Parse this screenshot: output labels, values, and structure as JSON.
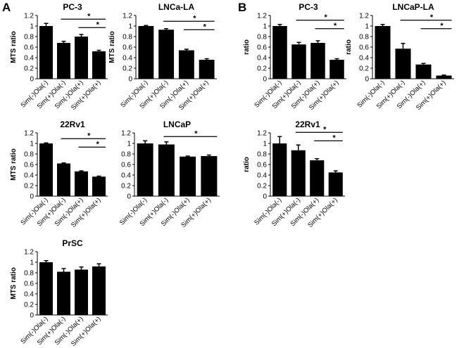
{
  "figure": {
    "panels": [
      {
        "label": "A"
      },
      {
        "label": "B"
      }
    ]
  },
  "chart_data": [
    {
      "type": "bar",
      "panel": "A",
      "title": "PC-3",
      "ylabel": "MTS ratio",
      "categories": [
        "Sim(-)Ola(-)",
        "Sim(+)Ola(-)",
        "Sim(-)Ola(+)",
        "Sim(+)Ola(+)"
      ],
      "values": [
        1.0,
        0.68,
        0.8,
        0.52
      ],
      "errors": [
        0.05,
        0.03,
        0.04,
        0.02
      ],
      "ylim": [
        0,
        1.2
      ],
      "yticks": [
        "0",
        "0.2",
        "0.4",
        "0.6",
        "0.8",
        "1",
        "1.2"
      ],
      "significance": [
        {
          "from": 1,
          "to": 3,
          "label": "*",
          "level": 0
        },
        {
          "from": 2,
          "to": 3,
          "label": "*",
          "level": 1
        }
      ]
    },
    {
      "type": "bar",
      "panel": "A",
      "title": "LNCa-LA",
      "ylabel": "MTS ratio",
      "categories": [
        "Sim(-)Ola(-)",
        "Sim(+)Ola(-)",
        "Sim(-)Ola(+)",
        "Sim(+)Ola(+)"
      ],
      "values": [
        1.0,
        0.93,
        0.54,
        0.36
      ],
      "errors": [
        0.01,
        0.02,
        0.02,
        0.02
      ],
      "ylim": [
        0,
        1.2
      ],
      "yticks": [
        "0",
        "0.2",
        "0.4",
        "0.6",
        "0.8",
        "1",
        "1.2"
      ],
      "significance": [
        {
          "from": 1,
          "to": 3,
          "label": "*",
          "level": 0
        },
        {
          "from": 2,
          "to": 3,
          "label": "*",
          "level": 1
        }
      ]
    },
    {
      "type": "bar",
      "panel": "B",
      "title": "PC-3",
      "ylabel": "ratio",
      "categories": [
        "Sim(-)Ola(-)",
        "Sim(+)Ola(-)",
        "Sim(-)Ola(+)",
        "Sim(+)Ola(+)"
      ],
      "values": [
        1.0,
        0.65,
        0.68,
        0.36
      ],
      "errors": [
        0.03,
        0.04,
        0.04,
        0.02
      ],
      "ylim": [
        0,
        1.2
      ],
      "yticks": [
        "0",
        "0.2",
        "0.4",
        "0.6",
        "0.8",
        "1",
        "1.2"
      ],
      "significance": [
        {
          "from": 1,
          "to": 3,
          "label": "*",
          "level": 0
        },
        {
          "from": 2,
          "to": 3,
          "label": "*",
          "level": 1
        }
      ]
    },
    {
      "type": "bar",
      "panel": "B",
      "title": "LNCaP-LA",
      "ylabel": "ratio",
      "categories": [
        "Sim(-)Ola(-)",
        "Sim(+)Ola(-)",
        "Sim(-)Ola(+)",
        "Sim(+)Ola(+)"
      ],
      "values": [
        1.0,
        0.57,
        0.27,
        0.06
      ],
      "errors": [
        0.03,
        0.1,
        0.02,
        0.01
      ],
      "ylim": [
        0,
        1.2
      ],
      "yticks": [
        "0",
        "0.2",
        "0.4",
        "0.6",
        "0.8",
        "1",
        "1.2"
      ],
      "significance": [
        {
          "from": 1,
          "to": 3,
          "label": "*",
          "level": 0
        },
        {
          "from": 2,
          "to": 3,
          "label": "*",
          "level": 1
        }
      ]
    },
    {
      "type": "bar",
      "panel": "A",
      "title": "22Rv1",
      "ylabel": "MTS ratio",
      "categories": [
        "Sim(-)Ola(-)",
        "Sim(+)Ola(-)",
        "Sim(-)Ola(+)",
        "Sim(+)Ola(+)"
      ],
      "values": [
        1.0,
        0.62,
        0.47,
        0.37
      ],
      "errors": [
        0.01,
        0.01,
        0.01,
        0.01
      ],
      "ylim": [
        0,
        1.2
      ],
      "yticks": [
        "0",
        "0.2",
        "0.4",
        "0.6",
        "0.8",
        "1",
        "1.2"
      ],
      "significance": [
        {
          "from": 1,
          "to": 3,
          "label": "*",
          "level": 0
        },
        {
          "from": 2,
          "to": 3,
          "label": "*",
          "level": 1
        }
      ]
    },
    {
      "type": "bar",
      "panel": "A",
      "title": "LNCaP",
      "ylabel": "",
      "categories": [
        "Sim(-)Ola(-)",
        "Sim(+)Ola(-)",
        "Sim(-)Ola(+)",
        "Sim(+)Ola(+)"
      ],
      "values": [
        1.0,
        0.98,
        0.75,
        0.76
      ],
      "errors": [
        0.05,
        0.05,
        0.01,
        0.02
      ],
      "ylim": [
        0,
        1.2
      ],
      "yticks": [
        "0",
        "0.2",
        "0.4",
        "0.6",
        "0.8",
        "1",
        "1.2"
      ],
      "significance": [
        {
          "from": 1,
          "to": 3,
          "label": "*",
          "level": 0
        }
      ]
    },
    {
      "type": "bar",
      "panel": "B",
      "title": "22Rv1",
      "ylabel": "ratio",
      "categories": [
        "Sim(-)Ola(-)",
        "Sim(+)Ola(-)",
        "Sim(-)Ola(+)",
        "Sim(+)Ola(+)"
      ],
      "values": [
        1.0,
        0.87,
        0.68,
        0.45
      ],
      "errors": [
        0.13,
        0.1,
        0.03,
        0.03
      ],
      "ylim": [
        0,
        1.2
      ],
      "yticks": [
        "0",
        "0.2",
        "0.4",
        "0.6",
        "0.8",
        "1",
        "1.2"
      ],
      "significance": [
        {
          "from": 1,
          "to": 3,
          "label": "*",
          "level": 0
        },
        {
          "from": 2,
          "to": 3,
          "label": "*",
          "level": 1
        }
      ]
    },
    {
      "type": "bar",
      "panel": "A",
      "title": "PrSC",
      "ylabel": "MTS ratio",
      "categories": [
        "Sim(-)Ola(-)",
        "Sim(+)Ola(-)",
        "Sim(-)Ola(+)",
        "Sim(+)Ola(+)"
      ],
      "values": [
        1.0,
        0.82,
        0.86,
        0.92
      ],
      "errors": [
        0.03,
        0.06,
        0.05,
        0.05
      ],
      "ylim": [
        0,
        1.2
      ],
      "yticks": [
        "0",
        "0.2",
        "0.4",
        "0.6",
        "0.8",
        "1",
        "1.2"
      ],
      "significance": []
    }
  ]
}
